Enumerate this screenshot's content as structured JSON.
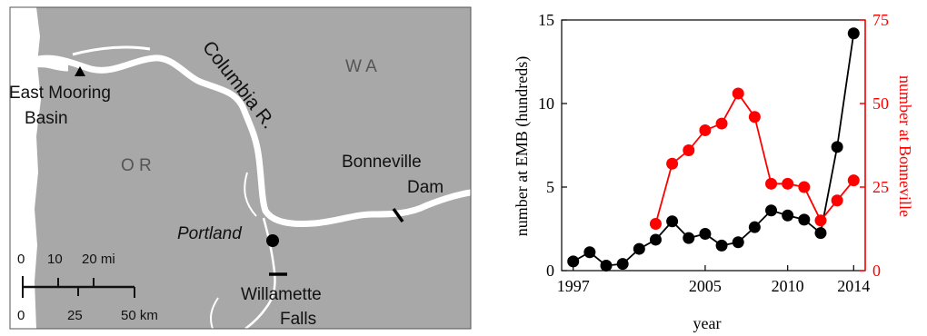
{
  "map": {
    "river_label": "Columbia R.",
    "state_wa": "W A",
    "state_or": "O R",
    "place_east_mooring_line1": "East Mooring",
    "place_east_mooring_line2": "Basin",
    "place_portland": "Portland",
    "place_bonneville_line1": "Bonneville",
    "place_bonneville_line2": "Dam",
    "place_willamette_line1": "Willamette",
    "place_willamette_line2": "Falls",
    "scale_mi": [
      "0",
      "10",
      "20 mi"
    ],
    "scale_km": [
      "0",
      "25",
      "50 km"
    ],
    "colors": {
      "land": "#a8a8a8",
      "water": "#ffffff",
      "text": "#111111"
    }
  },
  "chart_data": {
    "type": "line",
    "xlabel": "year",
    "ylabel_left": "number at EMB (hundreds)",
    "ylabel_right": "number at Bonneville",
    "xlim": [
      1996.3,
      2014.7
    ],
    "ylim_left": [
      0,
      15
    ],
    "ylim_right": [
      0,
      75
    ],
    "x_ticks": [
      1997,
      2005,
      2010,
      2014
    ],
    "y_ticks_left": [
      0,
      5,
      10,
      15
    ],
    "y_ticks_right": [
      0,
      25,
      50,
      75
    ],
    "grid": false,
    "series": [
      {
        "axis": "left",
        "color": "#000000",
        "x": [
          1997,
          1998,
          1999,
          2000,
          2001,
          2002,
          2003,
          2004,
          2005,
          2006,
          2007,
          2008,
          2009,
          2010,
          2011,
          2012,
          2013,
          2014
        ],
        "y": [
          0.55,
          1.1,
          0.3,
          0.4,
          1.3,
          1.85,
          2.95,
          1.95,
          2.2,
          1.5,
          1.7,
          2.6,
          3.6,
          3.3,
          3.05,
          2.25,
          7.4,
          14.2
        ]
      },
      {
        "axis": "right",
        "color": "#ff0000",
        "x": [
          2002,
          2003,
          2004,
          2005,
          2006,
          2007,
          2008,
          2009,
          2010,
          2011,
          2012,
          2013,
          2014
        ],
        "y": [
          14,
          32,
          36,
          42,
          44,
          53,
          46,
          26,
          26,
          25,
          15,
          21,
          27
        ]
      }
    ]
  }
}
